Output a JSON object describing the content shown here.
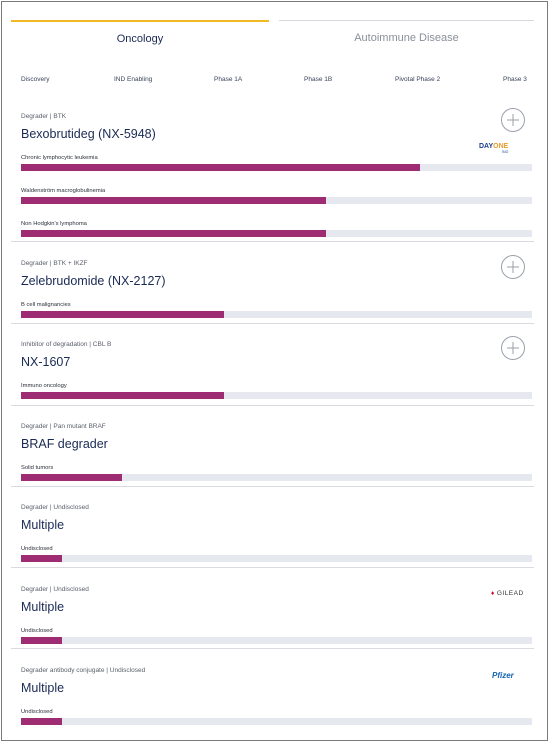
{
  "tabs": [
    {
      "label": "Oncology",
      "active": true
    },
    {
      "label": "Autoimmune Disease",
      "active": false
    }
  ],
  "phases": [
    "Discovery",
    "IND Enabling",
    "Phase 1A",
    "Phase 1B",
    "Pivotal Phase 2",
    "Phase 3"
  ],
  "colors": {
    "accent": "#f2b724",
    "bar_fill": "#9e2c73",
    "bar_track": "#e6e8ef",
    "text": "#1a2a55"
  },
  "programs": [
    {
      "meta": "Degrader | BTK",
      "name": "Bexobrutideg (NX-5948)",
      "expandable": true,
      "partner": {
        "logo": "day-one",
        "text": "DAY",
        "text2": "ONE",
        "sub": "BIO"
      },
      "indications": [
        {
          "label": "Chronic lymphocytic leukemia",
          "progress": 0.78
        },
        {
          "label": "Waldenström macroglobulinemia",
          "progress": 0.597
        },
        {
          "label": "Non Hodgkin's lymphoma",
          "progress": 0.597
        }
      ]
    },
    {
      "meta": "Degrader | BTK + IKZF",
      "name": "Zelebrudomide (NX-2127)",
      "expandable": true,
      "indications": [
        {
          "label": "B cell malignancies",
          "progress": 0.398
        }
      ]
    },
    {
      "meta": "Inhibitor of degradation | CBL B",
      "name": "NX-1607",
      "expandable": true,
      "indications": [
        {
          "label": "Immuno oncology",
          "progress": 0.398
        }
      ]
    },
    {
      "meta": "Degrader | Pan mutant BRAF",
      "name": "BRAF degrader",
      "expandable": false,
      "indications": [
        {
          "label": "Solid tumors",
          "progress": 0.198
        }
      ]
    },
    {
      "meta": "Degrader | Undisclosed",
      "name": "Multiple",
      "expandable": false,
      "indications": [
        {
          "label": "Undisclosed",
          "progress": 0.08
        }
      ]
    },
    {
      "meta": "Degrader | Undisclosed",
      "name": "Multiple",
      "expandable": false,
      "partner": {
        "logo": "gilead",
        "text": "GILEAD"
      },
      "indications": [
        {
          "label": "Undisclosed",
          "progress": 0.08
        }
      ]
    },
    {
      "meta": "Degrader antibody conjugate | Undisclosed",
      "name": "Multiple",
      "expandable": false,
      "partner": {
        "logo": "pfizer",
        "text": "Pfizer"
      },
      "indications": [
        {
          "label": "Undisclosed",
          "progress": 0.08
        }
      ]
    }
  ]
}
